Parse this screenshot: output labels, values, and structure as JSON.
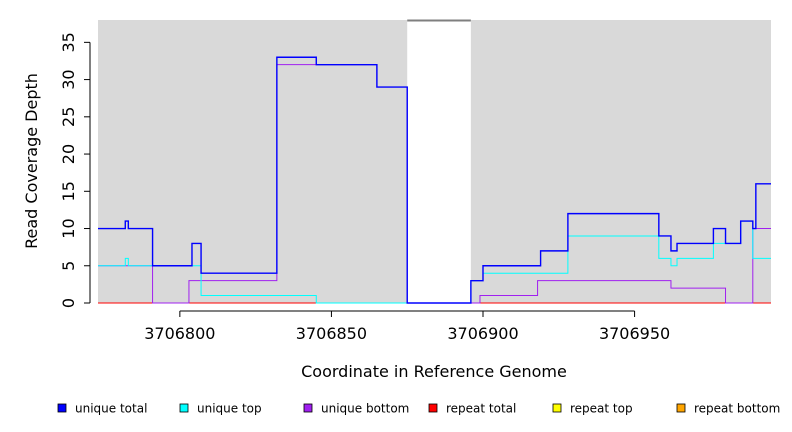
{
  "chart_data": {
    "type": "line",
    "subtype": "step",
    "xlabel": "Coordinate in Reference Genome",
    "ylabel": "Read Coverage Depth",
    "xlim": [
      3706773,
      3706995
    ],
    "ylim": [
      0,
      38
    ],
    "x_ticks": [
      3706800,
      3706850,
      3706900,
      3706950
    ],
    "x_tick_labels": [
      "3706800",
      "3706850",
      "3706900",
      "3706950"
    ],
    "y_ticks": [
      0,
      5,
      10,
      15,
      20,
      25,
      30,
      35
    ],
    "y_tick_labels": [
      "0",
      "5",
      "10",
      "15",
      "20",
      "25",
      "30",
      "35"
    ],
    "background_color": "#d9d9d9",
    "gap_region": {
      "x": [
        3706875,
        3706896
      ],
      "color": "#ffffff"
    },
    "grid": false,
    "legend_position": "bottom",
    "series": [
      {
        "name": "unique total",
        "color": "#0000ff",
        "points": [
          [
            3706773,
            10
          ],
          [
            3706782,
            11
          ],
          [
            3706783,
            10
          ],
          [
            3706791,
            5
          ],
          [
            3706804,
            8
          ],
          [
            3706807,
            4
          ],
          [
            3706832,
            33
          ],
          [
            3706845,
            32
          ],
          [
            3706865,
            29
          ],
          [
            3706875,
            0
          ],
          [
            3706896,
            3
          ],
          [
            3706900,
            5
          ],
          [
            3706919,
            7
          ],
          [
            3706928,
            12
          ],
          [
            3706958,
            9
          ],
          [
            3706962,
            7
          ],
          [
            3706964,
            8
          ],
          [
            3706976,
            10
          ],
          [
            3706980,
            8
          ],
          [
            3706985,
            11
          ],
          [
            3706989,
            10
          ],
          [
            3706990,
            16
          ],
          [
            3706995,
            16
          ]
        ]
      },
      {
        "name": "unique top",
        "color": "#00ffff",
        "points": [
          [
            3706773,
            5
          ],
          [
            3706782,
            6
          ],
          [
            3706783,
            5
          ],
          [
            3706791,
            5
          ],
          [
            3706804,
            5
          ],
          [
            3706807,
            1
          ],
          [
            3706845,
            0
          ],
          [
            3706875,
            0
          ],
          [
            3706896,
            3
          ],
          [
            3706900,
            4
          ],
          [
            3706919,
            4
          ],
          [
            3706928,
            9
          ],
          [
            3706958,
            6
          ],
          [
            3706962,
            5
          ],
          [
            3706964,
            6
          ],
          [
            3706976,
            8
          ],
          [
            3706980,
            8
          ],
          [
            3706985,
            11
          ],
          [
            3706989,
            6
          ],
          [
            3706995,
            6
          ]
        ]
      },
      {
        "name": "unique bottom",
        "color": "#a020f0",
        "points": [
          [
            3706773,
            5
          ],
          [
            3706791,
            0
          ],
          [
            3706803,
            3
          ],
          [
            3706832,
            32
          ],
          [
            3706845,
            32
          ],
          [
            3706865,
            29
          ],
          [
            3706875,
            0
          ],
          [
            3706899,
            1
          ],
          [
            3706918,
            3
          ],
          [
            3706962,
            2
          ],
          [
            3706980,
            0
          ],
          [
            3706989,
            10
          ],
          [
            3706995,
            10
          ]
        ]
      },
      {
        "name": "repeat total",
        "color": "#ff0000",
        "points": [
          [
            3706773,
            0
          ],
          [
            3706995,
            0
          ]
        ]
      },
      {
        "name": "repeat top",
        "color": "#ffff00",
        "points": [
          [
            3706773,
            0
          ],
          [
            3706995,
            0
          ]
        ]
      },
      {
        "name": "repeat bottom",
        "color": "#ffa500",
        "points": [
          [
            3706773,
            0
          ],
          [
            3706995,
            0
          ]
        ]
      }
    ]
  }
}
